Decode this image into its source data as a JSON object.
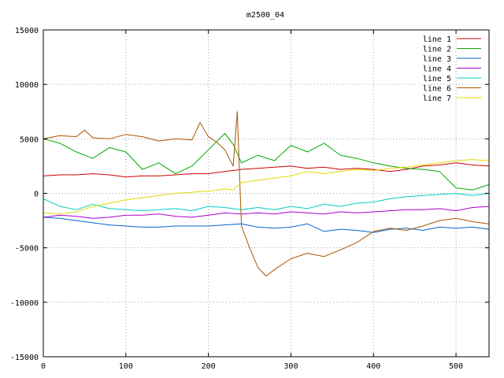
{
  "chart_data": {
    "type": "line",
    "title": "m2500_04",
    "xlim": [
      0,
      540
    ],
    "ylim": [
      -15000,
      15000
    ],
    "x_ticks": [
      0,
      100,
      200,
      300,
      400,
      500
    ],
    "y_ticks": [
      -15000,
      -10000,
      -5000,
      0,
      5000,
      10000,
      15000
    ],
    "grid": true,
    "legend_position": "top-right",
    "series": [
      {
        "name": "line 1",
        "color": "#cc0000",
        "x": [
          0,
          20,
          40,
          60,
          80,
          100,
          120,
          140,
          160,
          180,
          200,
          220,
          240,
          260,
          280,
          300,
          320,
          340,
          360,
          380,
          400,
          420,
          440,
          460,
          480,
          500,
          520,
          540
        ],
        "y": [
          1600,
          1700,
          1700,
          1800,
          1700,
          1500,
          1600,
          1600,
          1700,
          1800,
          1800,
          2000,
          2200,
          2300,
          2400,
          2500,
          2300,
          2400,
          2200,
          2300,
          2200,
          2000,
          2200,
          2500,
          2600,
          2800,
          2600,
          2500
        ]
      },
      {
        "name": "line 2",
        "color": "#00aa00",
        "x": [
          0,
          20,
          40,
          60,
          80,
          100,
          120,
          140,
          160,
          180,
          200,
          220,
          230,
          240,
          260,
          280,
          300,
          320,
          340,
          360,
          380,
          400,
          420,
          440,
          460,
          480,
          500,
          520,
          540
        ],
        "y": [
          5000,
          4600,
          3800,
          3200,
          4200,
          3800,
          2200,
          2800,
          1800,
          2500,
          4000,
          5500,
          4500,
          2800,
          3500,
          3000,
          4400,
          3800,
          4600,
          3500,
          3200,
          2800,
          2500,
          2300,
          2200,
          2000,
          500,
          300,
          800
        ]
      },
      {
        "name": "line 3",
        "color": "#0066cc",
        "x": [
          0,
          20,
          40,
          60,
          80,
          100,
          120,
          140,
          160,
          180,
          200,
          220,
          240,
          260,
          280,
          300,
          320,
          340,
          360,
          380,
          400,
          420,
          440,
          460,
          480,
          500,
          520,
          540
        ],
        "y": [
          -2200,
          -2300,
          -2500,
          -2700,
          -2900,
          -3000,
          -3100,
          -3100,
          -3000,
          -3000,
          -3000,
          -2900,
          -2800,
          -3100,
          -3200,
          -3100,
          -2800,
          -3500,
          -3300,
          -3400,
          -3600,
          -3300,
          -3200,
          -3400,
          -3100,
          -3200,
          -3100,
          -3300
        ]
      },
      {
        "name": "line 4",
        "color": "#aa00cc",
        "x": [
          0,
          20,
          40,
          60,
          80,
          100,
          120,
          140,
          160,
          180,
          200,
          220,
          240,
          260,
          280,
          300,
          320,
          340,
          360,
          380,
          400,
          420,
          440,
          460,
          480,
          500,
          520,
          540
        ],
        "y": [
          -2200,
          -2000,
          -2100,
          -2300,
          -2200,
          -2000,
          -2000,
          -1900,
          -2100,
          -2200,
          -2000,
          -1800,
          -1900,
          -1800,
          -1900,
          -1700,
          -1800,
          -1900,
          -1700,
          -1800,
          -1700,
          -1600,
          -1500,
          -1500,
          -1400,
          -1600,
          -1300,
          -1200
        ]
      },
      {
        "name": "line 5",
        "color": "#00cccc",
        "x": [
          0,
          20,
          40,
          60,
          80,
          100,
          120,
          140,
          160,
          180,
          200,
          220,
          240,
          260,
          280,
          300,
          320,
          340,
          360,
          380,
          400,
          420,
          440,
          460,
          480,
          500,
          520,
          540
        ],
        "y": [
          -500,
          -1200,
          -1500,
          -1000,
          -1400,
          -1500,
          -1600,
          -1500,
          -1400,
          -1600,
          -1200,
          -1300,
          -1500,
          -1300,
          -1500,
          -1200,
          -1400,
          -1000,
          -1200,
          -900,
          -800,
          -500,
          -300,
          -200,
          -100,
          0,
          -200,
          0
        ]
      },
      {
        "name": "line 6",
        "color": "#aa5500",
        "x": [
          0,
          20,
          40,
          50,
          60,
          80,
          100,
          120,
          140,
          160,
          180,
          190,
          200,
          210,
          220,
          230,
          235,
          240,
          250,
          260,
          270,
          280,
          300,
          320,
          340,
          360,
          380,
          400,
          420,
          440,
          460,
          480,
          500,
          520,
          540
        ],
        "y": [
          5000,
          5300,
          5200,
          5800,
          5100,
          5000,
          5400,
          5200,
          4800,
          5000,
          4900,
          6500,
          5200,
          4700,
          4000,
          2500,
          7500,
          -3000,
          -5000,
          -6800,
          -7600,
          -7000,
          -6000,
          -5500,
          -5800,
          -5200,
          -4500,
          -3500,
          -3200,
          -3400,
          -3000,
          -2500,
          -2300,
          -2600,
          -2800
        ]
      },
      {
        "name": "line 7",
        "color": "#dddd00",
        "x": [
          0,
          20,
          40,
          60,
          80,
          100,
          120,
          140,
          160,
          180,
          200,
          220,
          230,
          240,
          260,
          280,
          300,
          320,
          340,
          360,
          380,
          400,
          420,
          440,
          460,
          480,
          500,
          520,
          540
        ],
        "y": [
          -1800,
          -1900,
          -1700,
          -1200,
          -900,
          -600,
          -400,
          -200,
          0,
          100,
          200,
          400,
          300,
          1000,
          1200,
          1400,
          1600,
          2000,
          1800,
          2000,
          2200,
          2100,
          2300,
          2400,
          2600,
          2800,
          3000,
          3100,
          3000
        ]
      }
    ]
  }
}
